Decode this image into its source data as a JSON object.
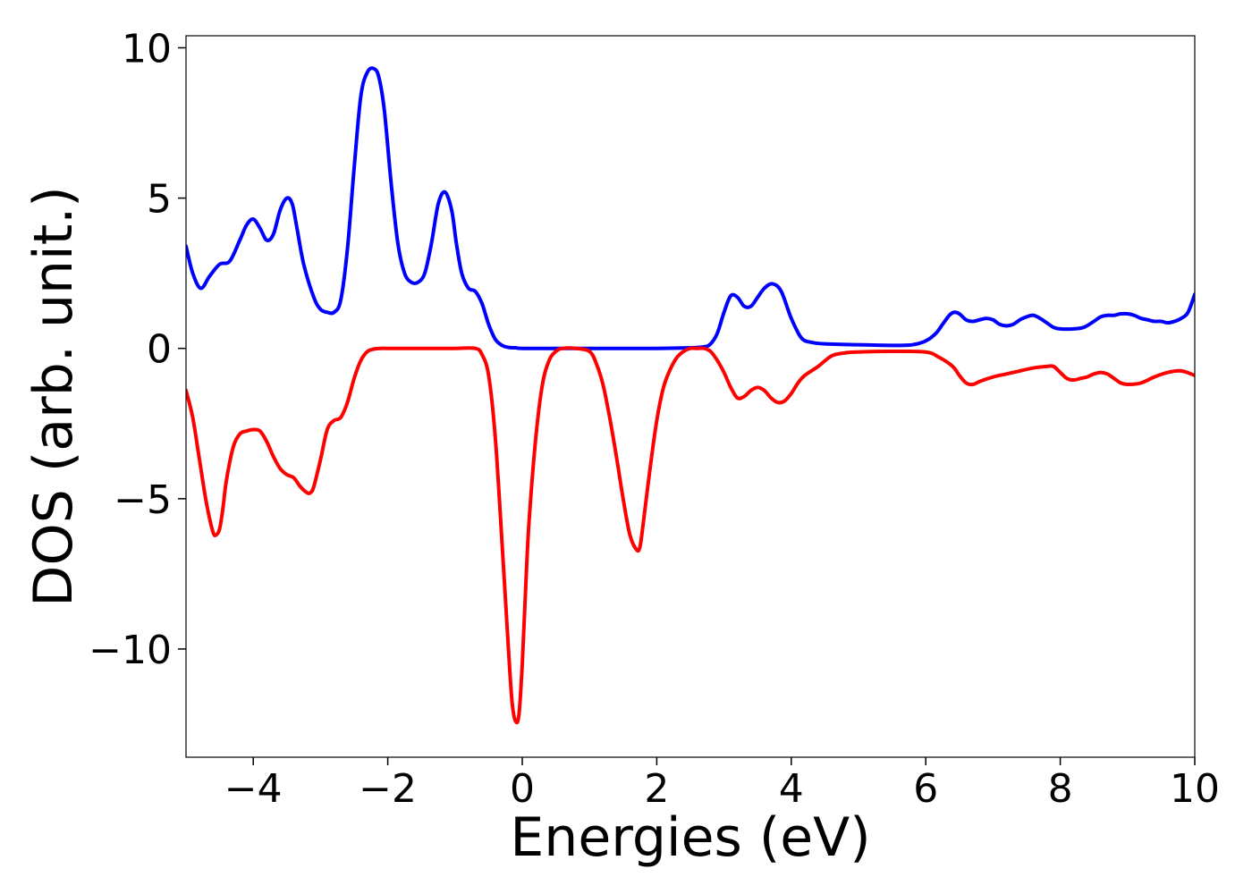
{
  "chart_data": {
    "type": "line",
    "title": "",
    "xlabel": "Energies (eV)",
    "ylabel": "DOS (arb. unit.)",
    "xlim": [
      -5,
      10
    ],
    "ylim": [
      -13.6,
      10.4
    ],
    "xticks": [
      -4,
      -2,
      0,
      2,
      4,
      6,
      8,
      10
    ],
    "xtick_labels": [
      "−4",
      "−2",
      "0",
      "2",
      "4",
      "6",
      "8",
      "10"
    ],
    "yticks": [
      10,
      5,
      0,
      -5,
      -10
    ],
    "ytick_labels": [
      "10",
      "5",
      "0",
      "−5",
      "−10"
    ],
    "grid": false,
    "legend": "none",
    "series": [
      {
        "color": "#0000ff",
        "x": [
          -5.0,
          -4.9,
          -4.78,
          -4.65,
          -4.5,
          -4.35,
          -4.2,
          -4.1,
          -4.0,
          -3.9,
          -3.8,
          -3.7,
          -3.6,
          -3.5,
          -3.42,
          -3.35,
          -3.25,
          -3.1,
          -3.0,
          -2.9,
          -2.8,
          -2.7,
          -2.6,
          -2.5,
          -2.4,
          -2.3,
          -2.2,
          -2.13,
          -2.05,
          -1.95,
          -1.85,
          -1.75,
          -1.65,
          -1.55,
          -1.45,
          -1.35,
          -1.25,
          -1.15,
          -1.05,
          -0.98,
          -0.9,
          -0.8,
          -0.7,
          -0.6,
          -0.5,
          -0.4,
          -0.3,
          -0.2,
          -0.1,
          0.0,
          0.5,
          1.0,
          1.5,
          2.0,
          2.5,
          2.7,
          2.8,
          2.9,
          3.0,
          3.1,
          3.2,
          3.3,
          3.4,
          3.5,
          3.6,
          3.72,
          3.85,
          4.0,
          4.15,
          4.3,
          4.5,
          5.0,
          5.5,
          5.8,
          6.0,
          6.15,
          6.25,
          6.35,
          6.42,
          6.5,
          6.6,
          6.7,
          6.8,
          6.9,
          7.0,
          7.1,
          7.2,
          7.3,
          7.4,
          7.5,
          7.6,
          7.7,
          7.8,
          7.9,
          8.0,
          8.2,
          8.35,
          8.5,
          8.6,
          8.7,
          8.8,
          8.9,
          9.0,
          9.1,
          9.2,
          9.3,
          9.4,
          9.5,
          9.6,
          9.7,
          9.8,
          9.9,
          10.0
        ],
        "y": [
          3.4,
          2.5,
          2.0,
          2.4,
          2.8,
          2.9,
          3.6,
          4.1,
          4.3,
          4.0,
          3.6,
          3.8,
          4.6,
          5.0,
          4.8,
          4.0,
          2.8,
          1.7,
          1.3,
          1.2,
          1.2,
          1.6,
          3.3,
          6.0,
          8.4,
          9.2,
          9.3,
          9.0,
          7.9,
          5.5,
          3.5,
          2.5,
          2.2,
          2.2,
          2.5,
          3.5,
          4.8,
          5.2,
          4.6,
          3.5,
          2.5,
          2.0,
          1.9,
          1.5,
          0.8,
          0.3,
          0.1,
          0.03,
          0.02,
          0.0,
          0.0,
          0.0,
          0.0,
          0.0,
          0.02,
          0.05,
          0.15,
          0.5,
          1.2,
          1.75,
          1.7,
          1.4,
          1.4,
          1.7,
          2.0,
          2.15,
          1.9,
          1.0,
          0.35,
          0.2,
          0.15,
          0.12,
          0.1,
          0.12,
          0.25,
          0.5,
          0.8,
          1.1,
          1.2,
          1.15,
          0.95,
          0.9,
          0.95,
          1.0,
          0.95,
          0.8,
          0.75,
          0.8,
          0.95,
          1.05,
          1.1,
          1.0,
          0.85,
          0.7,
          0.65,
          0.65,
          0.7,
          0.9,
          1.05,
          1.1,
          1.1,
          1.15,
          1.15,
          1.1,
          1.0,
          0.95,
          0.9,
          0.9,
          0.85,
          0.9,
          1.0,
          1.2,
          1.8
        ]
      },
      {
        "color": "#ff0000",
        "x": [
          -5.0,
          -4.9,
          -4.8,
          -4.7,
          -4.6,
          -4.55,
          -4.5,
          -4.45,
          -4.4,
          -4.3,
          -4.2,
          -4.1,
          -4.0,
          -3.9,
          -3.8,
          -3.7,
          -3.6,
          -3.5,
          -3.4,
          -3.3,
          -3.2,
          -3.15,
          -3.1,
          -3.0,
          -2.9,
          -2.8,
          -2.7,
          -2.6,
          -2.5,
          -2.4,
          -2.3,
          -2.2,
          -2.1,
          -2.0,
          -1.5,
          -1.0,
          -0.7,
          -0.6,
          -0.5,
          -0.4,
          -0.3,
          -0.2,
          -0.15,
          -0.1,
          -0.05,
          0.0,
          0.05,
          0.1,
          0.2,
          0.3,
          0.4,
          0.5,
          0.6,
          0.8,
          1.0,
          1.1,
          1.2,
          1.3,
          1.4,
          1.5,
          1.6,
          1.7,
          1.75,
          1.8,
          1.9,
          2.0,
          2.1,
          2.2,
          2.3,
          2.4,
          2.5,
          2.6,
          2.7,
          2.8,
          2.9,
          3.0,
          3.1,
          3.2,
          3.3,
          3.4,
          3.5,
          3.6,
          3.7,
          3.8,
          3.9,
          4.0,
          4.1,
          4.2,
          4.4,
          4.6,
          4.8,
          5.0,
          5.5,
          6.0,
          6.2,
          6.4,
          6.5,
          6.6,
          6.7,
          6.8,
          7.0,
          7.2,
          7.4,
          7.6,
          7.8,
          7.9,
          8.0,
          8.1,
          8.2,
          8.3,
          8.4,
          8.5,
          8.6,
          8.7,
          8.8,
          8.9,
          9.0,
          9.2,
          9.4,
          9.6,
          9.8,
          10.0
        ],
        "y": [
          -1.4,
          -2.3,
          -3.7,
          -5.1,
          -6.1,
          -6.2,
          -6.0,
          -5.3,
          -4.4,
          -3.3,
          -2.85,
          -2.75,
          -2.7,
          -2.75,
          -3.1,
          -3.6,
          -4.0,
          -4.2,
          -4.3,
          -4.6,
          -4.8,
          -4.8,
          -4.6,
          -3.7,
          -2.7,
          -2.4,
          -2.3,
          -1.8,
          -1.0,
          -0.4,
          -0.1,
          -0.02,
          0.0,
          0.0,
          0.0,
          0.0,
          0.0,
          -0.2,
          -0.9,
          -3.0,
          -6.5,
          -10.2,
          -11.8,
          -12.4,
          -12.2,
          -10.5,
          -8.0,
          -5.8,
          -3.0,
          -1.2,
          -0.4,
          -0.1,
          0.0,
          0.0,
          -0.1,
          -0.5,
          -1.2,
          -2.3,
          -3.6,
          -5.0,
          -6.2,
          -6.7,
          -6.6,
          -5.8,
          -4.0,
          -2.4,
          -1.3,
          -0.7,
          -0.3,
          -0.1,
          0.0,
          0.0,
          0.0,
          -0.1,
          -0.4,
          -0.8,
          -1.3,
          -1.65,
          -1.6,
          -1.4,
          -1.3,
          -1.4,
          -1.65,
          -1.8,
          -1.75,
          -1.5,
          -1.15,
          -0.9,
          -0.6,
          -0.25,
          -0.15,
          -0.12,
          -0.1,
          -0.12,
          -0.3,
          -0.6,
          -0.9,
          -1.15,
          -1.2,
          -1.1,
          -0.95,
          -0.85,
          -0.75,
          -0.65,
          -0.6,
          -0.6,
          -0.8,
          -1.0,
          -1.05,
          -1.0,
          -0.95,
          -0.85,
          -0.8,
          -0.85,
          -1.0,
          -1.15,
          -1.2,
          -1.15,
          -0.95,
          -0.8,
          -0.75,
          -0.9
        ]
      }
    ]
  }
}
